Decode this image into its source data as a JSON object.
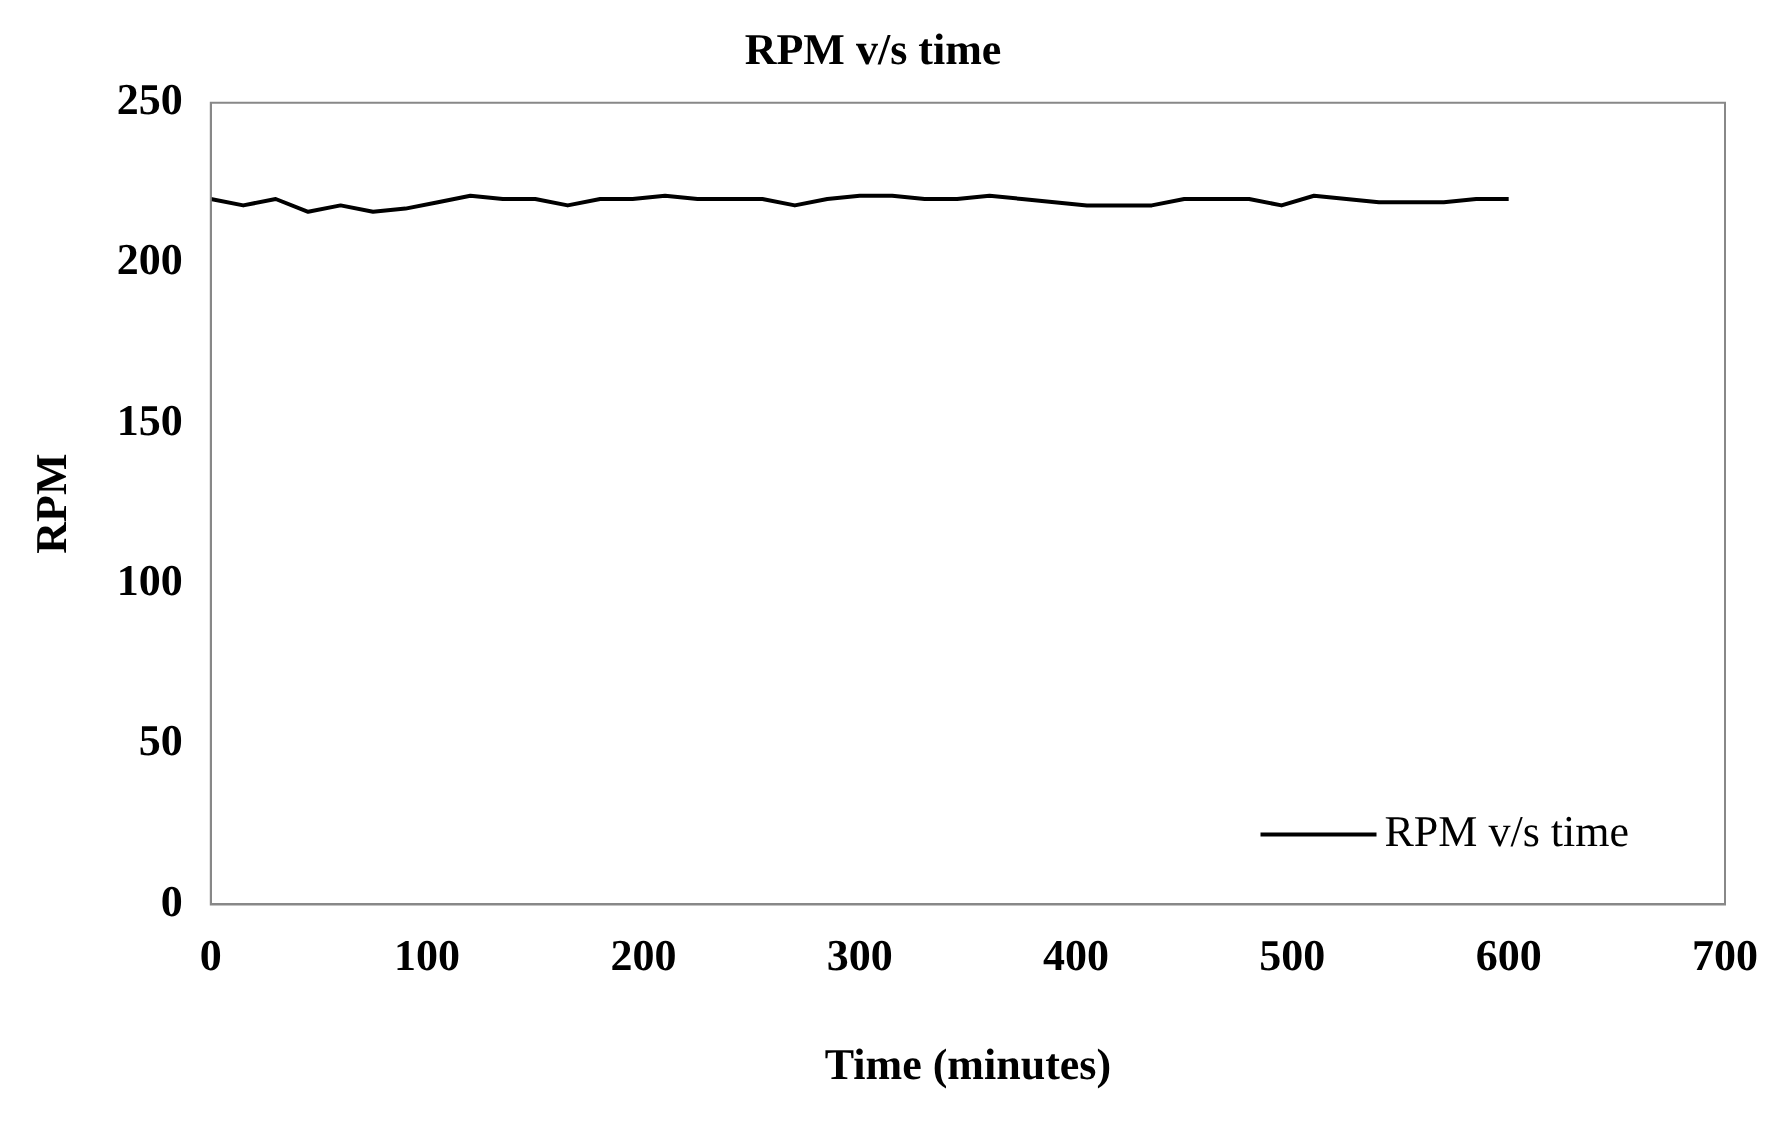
{
  "chart_data": {
    "type": "line",
    "title": "RPM v/s time",
    "xlabel": "Time (minutes)",
    "ylabel": "RPM",
    "x": [
      0,
      15,
      30,
      45,
      60,
      75,
      90,
      105,
      120,
      135,
      150,
      165,
      180,
      195,
      210,
      225,
      240,
      255,
      270,
      285,
      300,
      315,
      330,
      345,
      360,
      375,
      390,
      405,
      420,
      435,
      450,
      465,
      480,
      495,
      510,
      525,
      540,
      555,
      570,
      585,
      600
    ],
    "series": [
      {
        "name": "RPM v/s time",
        "color": "#000000",
        "values": [
          220,
          218,
          220,
          216,
          218,
          216,
          217,
          219,
          221,
          220,
          220,
          218,
          220,
          220,
          221,
          220,
          220,
          220,
          218,
          220,
          221,
          221,
          220,
          220,
          221,
          220,
          219,
          218,
          218,
          218,
          220,
          220,
          220,
          218,
          221,
          220,
          219,
          219,
          219,
          220,
          220
        ]
      }
    ],
    "xlim": [
      0,
      700
    ],
    "xticks": [
      0,
      100,
      200,
      300,
      400,
      500,
      600,
      700
    ],
    "ylim": [
      0,
      250
    ],
    "yticks": [
      0,
      50,
      100,
      150,
      200,
      250
    ],
    "grid": false,
    "legend": "bottom right",
    "marker": "none",
    "line_style": "solid"
  }
}
